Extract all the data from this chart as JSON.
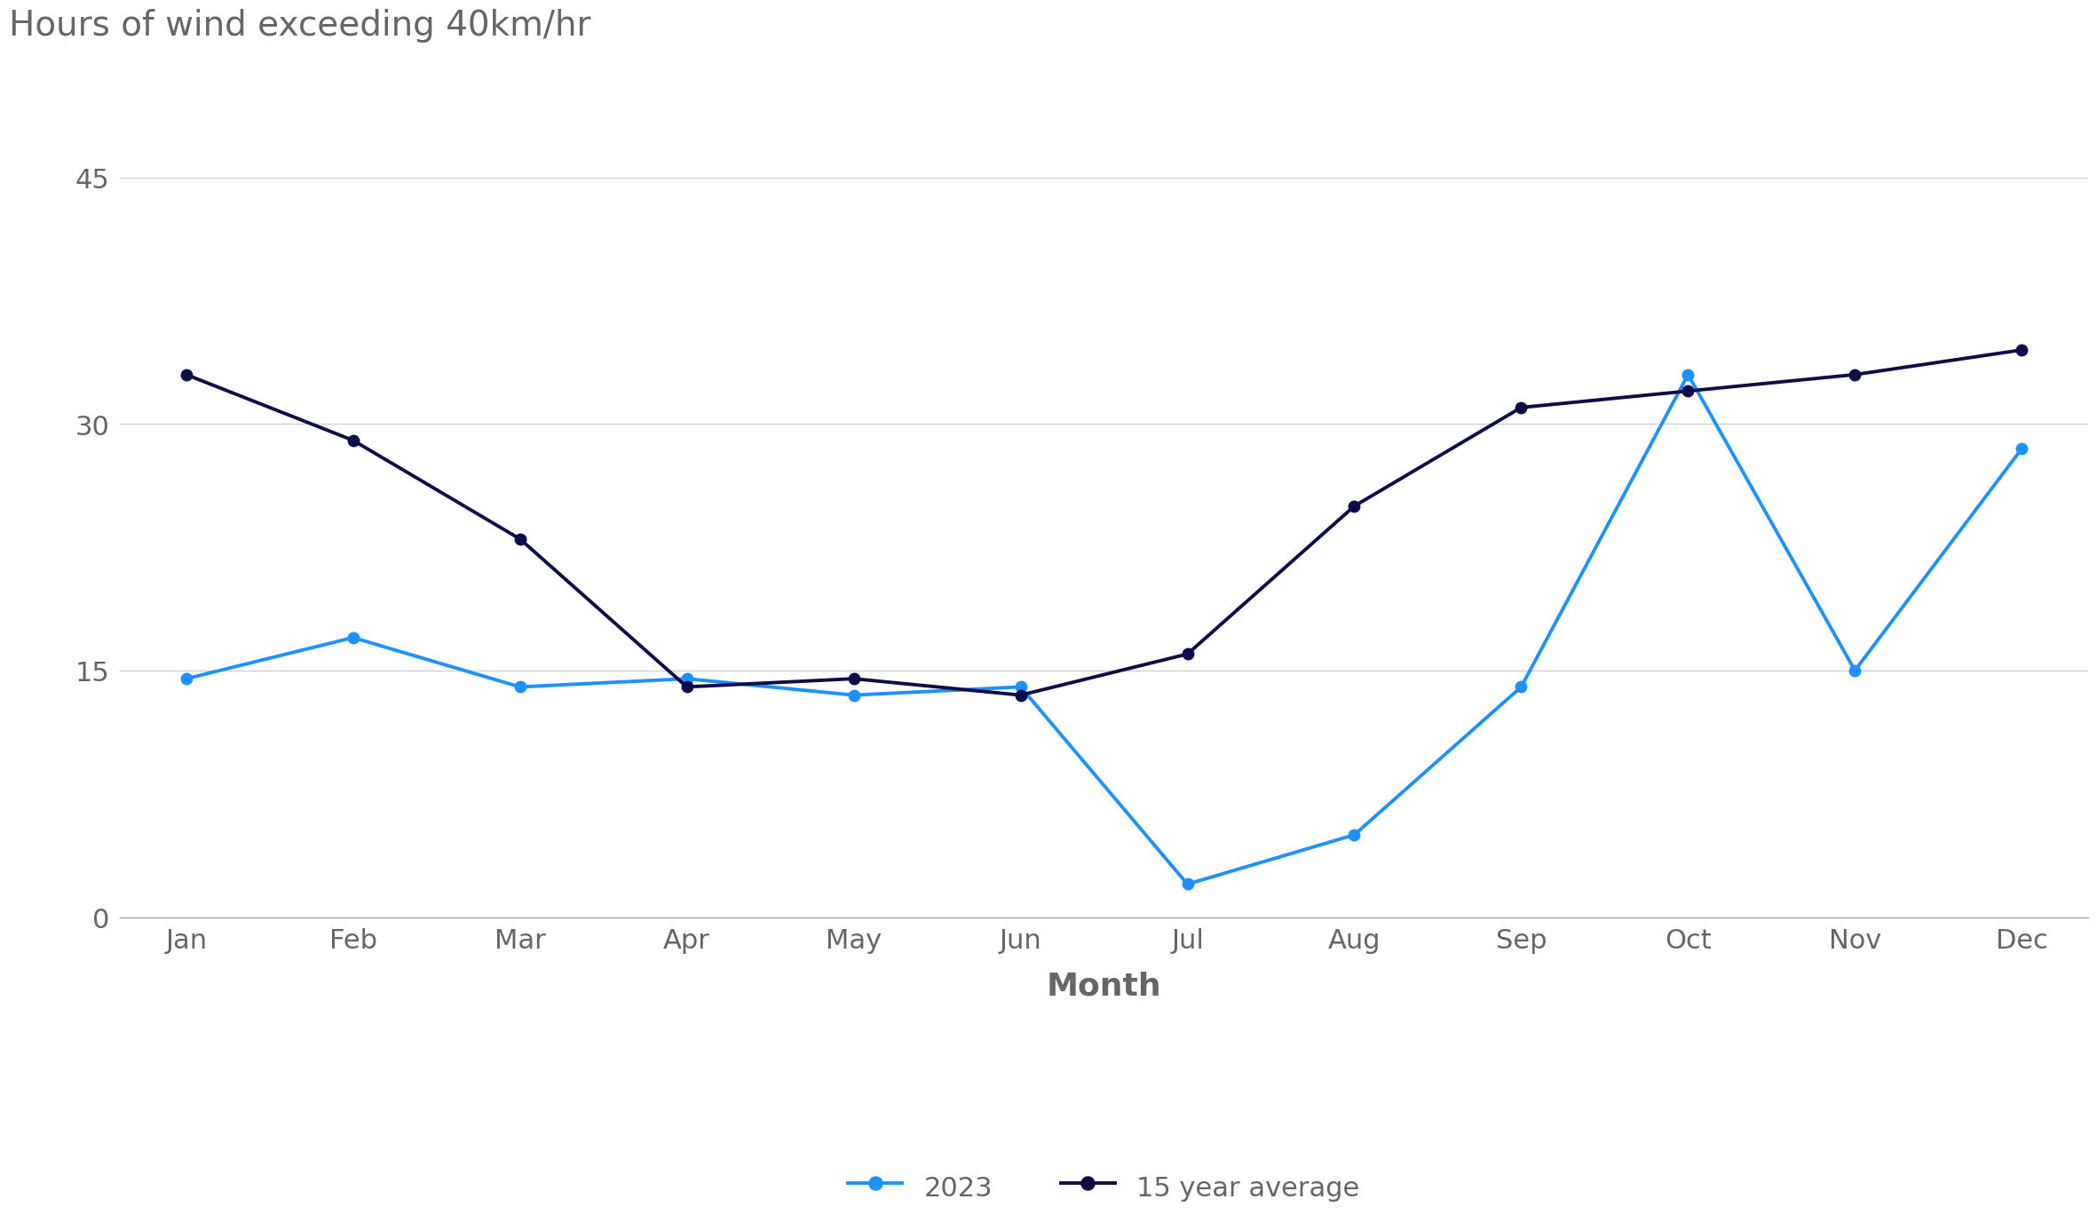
{
  "title": "Hours of wind exceeding 40km/hr",
  "xlabel": "Month",
  "ylabel": "",
  "months": [
    "Jan",
    "Feb",
    "Mar",
    "Apr",
    "May",
    "Jun",
    "Jul",
    "Aug",
    "Sep",
    "Oct",
    "Nov",
    "Dec"
  ],
  "data_2023": [
    14.5,
    17,
    14,
    14.5,
    13.5,
    14,
    2,
    5,
    14,
    33,
    15,
    28.5
  ],
  "data_avg": [
    33,
    29,
    23,
    14,
    14.5,
    13.5,
    16,
    25,
    31,
    32,
    33,
    34.5
  ],
  "color_2023": "#1E90FF",
  "color_avg": "#0D0D4A",
  "ylim": [
    0,
    45
  ],
  "yticks": [
    0,
    15,
    30,
    45
  ],
  "legend_labels": [
    "2023",
    "15 year average"
  ],
  "title_color": "#666666",
  "axis_label_color": "#666666",
  "tick_label_color": "#666666",
  "background_color": "#ffffff",
  "grid_color": "#d0d0d0",
  "linewidth": 2.8,
  "markersize": 9,
  "title_fontsize": 28,
  "tick_fontsize": 22,
  "xlabel_fontsize": 26,
  "legend_fontsize": 22
}
